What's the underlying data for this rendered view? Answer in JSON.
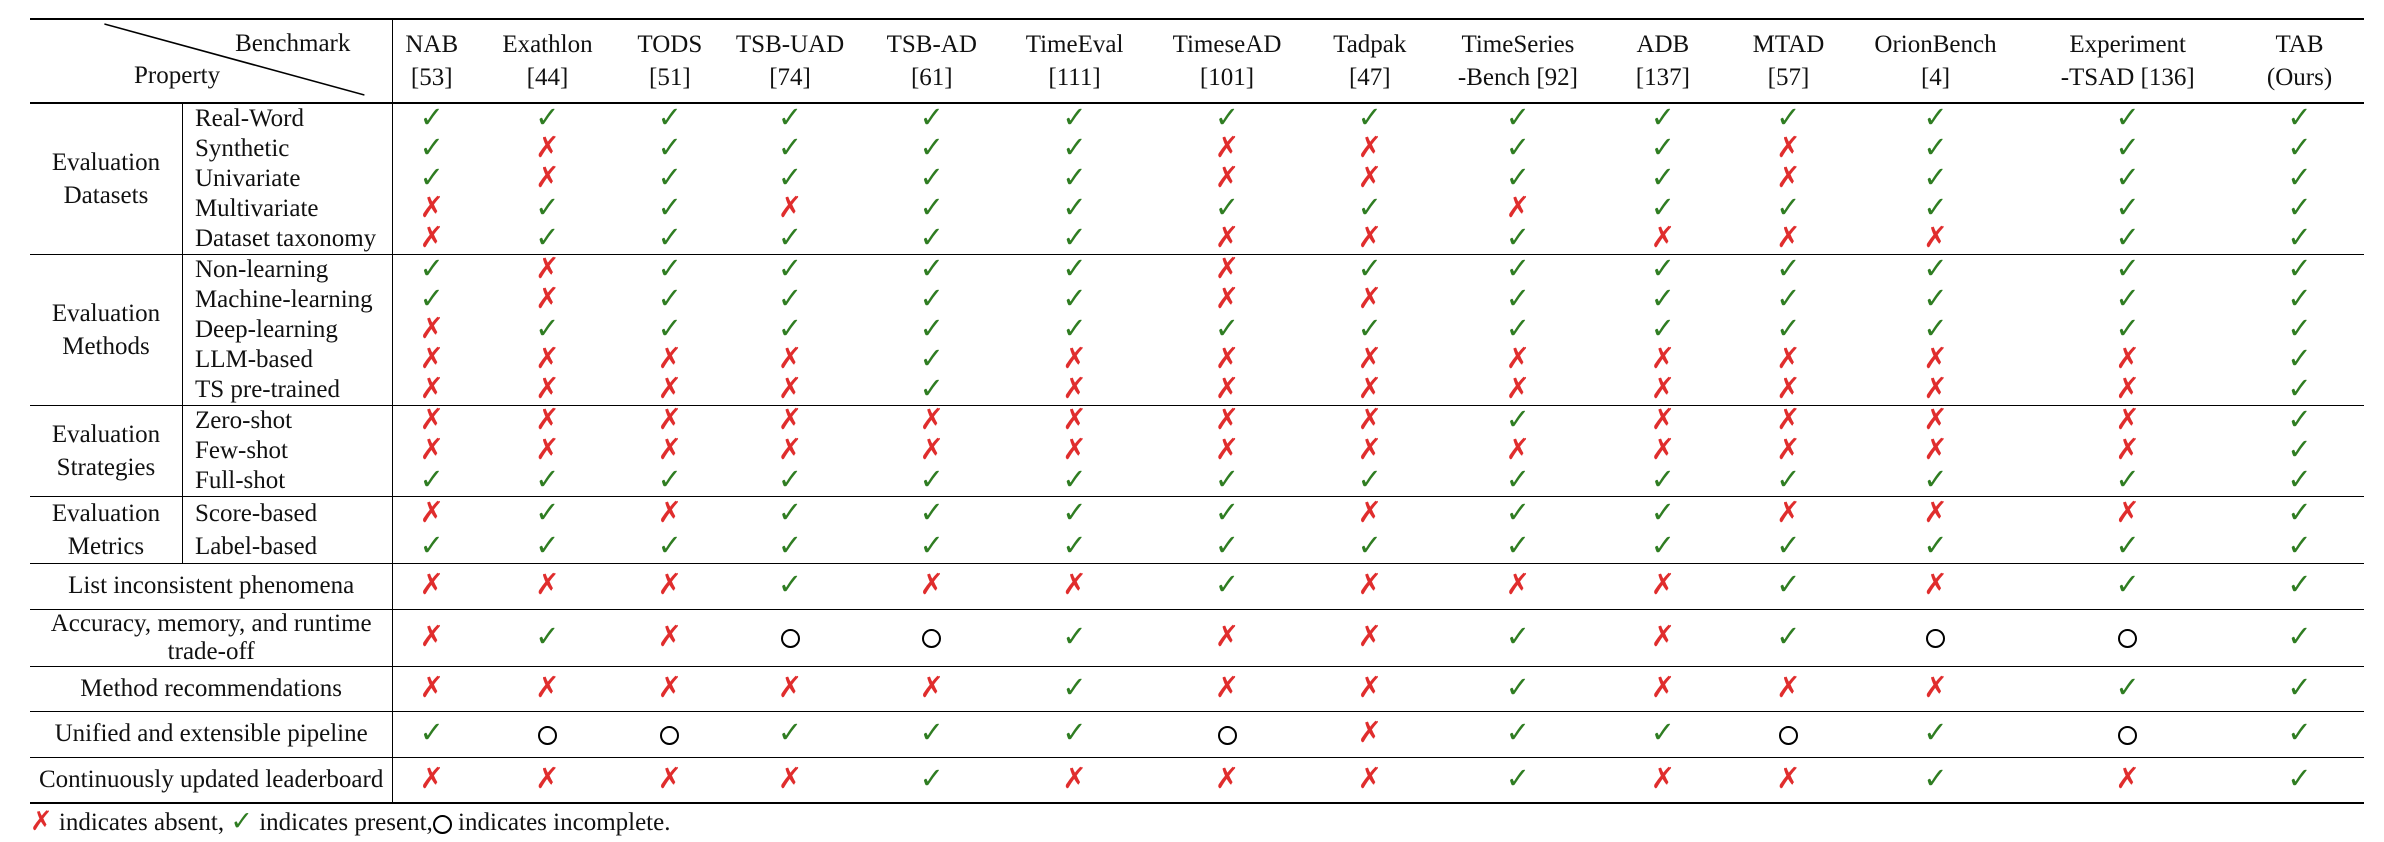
{
  "header": {
    "diag_top": "Benchmark",
    "diag_bottom": "Property",
    "benchmarks": [
      {
        "line1": "NAB",
        "line2": "[53]",
        "bold": false
      },
      {
        "line1": "Exathlon",
        "line2": "[44]",
        "bold": false
      },
      {
        "line1": "TODS",
        "line2": "[51]",
        "bold": false
      },
      {
        "line1": "TSB-UAD",
        "line2": "[74]",
        "bold": false
      },
      {
        "line1": "TSB-AD",
        "line2": "[61]",
        "bold": false
      },
      {
        "line1": "TimeEval",
        "line2": "[111]",
        "bold": false
      },
      {
        "line1": "TimeseAD",
        "line2": "[101]",
        "bold": false
      },
      {
        "line1": "Tadpak",
        "line2": "[47]",
        "bold": false
      },
      {
        "line1": "TimeSeries",
        "line2": "-Bench [92]",
        "bold": false
      },
      {
        "line1": "ADB",
        "line2": "[137]",
        "bold": false
      },
      {
        "line1": "MTAD",
        "line2": "[57]",
        "bold": false
      },
      {
        "line1": "OrionBench",
        "line2": "[4]",
        "bold": false
      },
      {
        "line1": "Experiment",
        "line2": "-TSAD [136]",
        "bold": false
      },
      {
        "line1": "TAB",
        "line2": "(Ours)",
        "bold": true
      }
    ]
  },
  "legend_symbols": {
    "present": "✓",
    "absent": "✗"
  },
  "groups": [
    {
      "label_lines": [
        "Evaluation",
        "Datasets"
      ],
      "rows": [
        {
          "label": "Real-Word",
          "marks": [
            "P",
            "P",
            "P",
            "P",
            "P",
            "P",
            "P",
            "P",
            "P",
            "P",
            "P",
            "P",
            "P",
            "P"
          ]
        },
        {
          "label": "Synthetic",
          "marks": [
            "P",
            "A",
            "P",
            "P",
            "P",
            "P",
            "A",
            "A",
            "P",
            "P",
            "A",
            "P",
            "P",
            "P"
          ]
        },
        {
          "label": "Univariate",
          "marks": [
            "P",
            "A",
            "P",
            "P",
            "P",
            "P",
            "A",
            "A",
            "P",
            "P",
            "A",
            "P",
            "P",
            "P"
          ]
        },
        {
          "label": "Multivariate",
          "marks": [
            "A",
            "P",
            "P",
            "A",
            "P",
            "P",
            "P",
            "P",
            "A",
            "P",
            "P",
            "P",
            "P",
            "P"
          ]
        },
        {
          "label": "Dataset taxonomy",
          "marks": [
            "A",
            "P",
            "P",
            "P",
            "P",
            "P",
            "A",
            "A",
            "P",
            "A",
            "A",
            "A",
            "P",
            "P"
          ]
        }
      ]
    },
    {
      "label_lines": [
        "Evaluation",
        "Methods"
      ],
      "rows": [
        {
          "label": "Non-learning",
          "marks": [
            "P",
            "A",
            "P",
            "P",
            "P",
            "P",
            "A",
            "P",
            "P",
            "P",
            "P",
            "P",
            "P",
            "P"
          ]
        },
        {
          "label": "Machine-learning",
          "marks": [
            "P",
            "A",
            "P",
            "P",
            "P",
            "P",
            "A",
            "A",
            "P",
            "P",
            "P",
            "P",
            "P",
            "P"
          ]
        },
        {
          "label": "Deep-learning",
          "marks": [
            "A",
            "P",
            "P",
            "P",
            "P",
            "P",
            "P",
            "P",
            "P",
            "P",
            "P",
            "P",
            "P",
            "P"
          ]
        },
        {
          "label": "LLM-based",
          "marks": [
            "A",
            "A",
            "A",
            "A",
            "P",
            "A",
            "A",
            "A",
            "A",
            "A",
            "A",
            "A",
            "A",
            "P"
          ]
        },
        {
          "label": "TS pre-trained",
          "marks": [
            "A",
            "A",
            "A",
            "A",
            "P",
            "A",
            "A",
            "A",
            "A",
            "A",
            "A",
            "A",
            "A",
            "P"
          ]
        }
      ]
    },
    {
      "label_lines": [
        "Evaluation",
        "Strategies"
      ],
      "rows": [
        {
          "label": "Zero-shot",
          "marks": [
            "A",
            "A",
            "A",
            "A",
            "A",
            "A",
            "A",
            "A",
            "P",
            "A",
            "A",
            "A",
            "A",
            "P"
          ]
        },
        {
          "label": "Few-shot",
          "marks": [
            "A",
            "A",
            "A",
            "A",
            "A",
            "A",
            "A",
            "A",
            "A",
            "A",
            "A",
            "A",
            "A",
            "P"
          ]
        },
        {
          "label": "Full-shot",
          "marks": [
            "P",
            "P",
            "P",
            "P",
            "P",
            "P",
            "P",
            "P",
            "P",
            "P",
            "P",
            "P",
            "P",
            "P"
          ]
        }
      ]
    },
    {
      "label_lines": [
        "Evaluation",
        "Metrics"
      ],
      "rows": [
        {
          "label": "Score-based",
          "marks": [
            "A",
            "P",
            "A",
            "P",
            "P",
            "P",
            "P",
            "A",
            "P",
            "P",
            "A",
            "A",
            "A",
            "P"
          ]
        },
        {
          "label": "Label-based",
          "marks": [
            "P",
            "P",
            "P",
            "P",
            "P",
            "P",
            "P",
            "P",
            "P",
            "P",
            "P",
            "P",
            "P",
            "P"
          ]
        }
      ]
    }
  ],
  "full_rows": [
    {
      "label": "List inconsistent phenomena",
      "marks": [
        "A",
        "A",
        "A",
        "P",
        "A",
        "A",
        "P",
        "A",
        "A",
        "A",
        "P",
        "A",
        "P",
        "P"
      ]
    },
    {
      "label": "Accuracy, memory, and runtime trade-off",
      "marks": [
        "A",
        "P",
        "A",
        "O",
        "O",
        "P",
        "A",
        "A",
        "P",
        "A",
        "P",
        "O",
        "O",
        "P"
      ]
    },
    {
      "label": "Method recommendations",
      "marks": [
        "A",
        "A",
        "A",
        "A",
        "A",
        "P",
        "A",
        "A",
        "P",
        "A",
        "A",
        "A",
        "P",
        "P"
      ]
    },
    {
      "label": "Unified and extensible pipeline",
      "marks": [
        "P",
        "O",
        "O",
        "P",
        "P",
        "P",
        "O",
        "A",
        "P",
        "P",
        "O",
        "P",
        "O",
        "P"
      ]
    },
    {
      "label": "Continuously updated leaderboard",
      "marks": [
        "A",
        "A",
        "A",
        "A",
        "P",
        "A",
        "A",
        "A",
        "P",
        "A",
        "A",
        "P",
        "A",
        "P"
      ]
    }
  ],
  "footnote": {
    "absent_text": " indicates absent, ",
    "present_text": " indicates present,",
    "incomplete_text": " indicates incomplete."
  }
}
